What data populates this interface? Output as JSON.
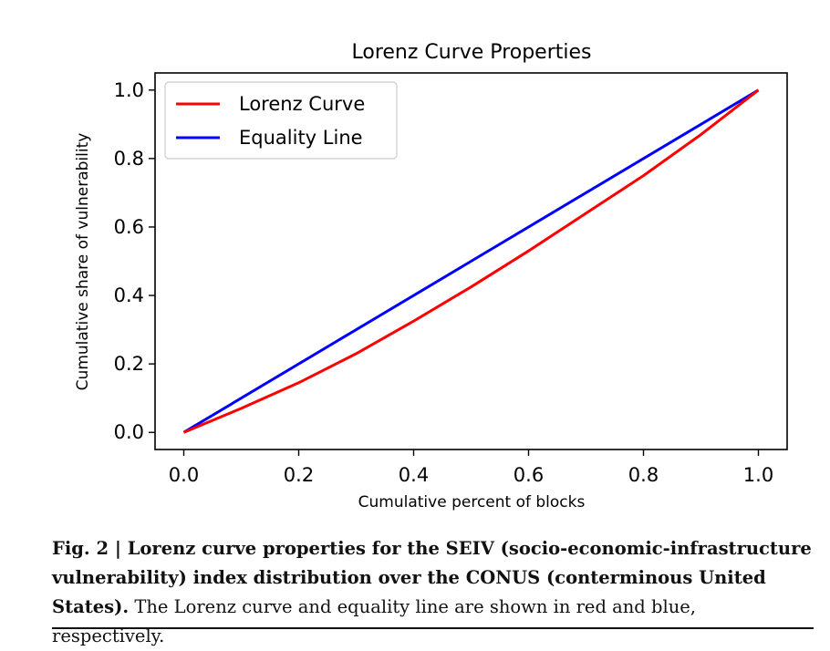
{
  "chart_data": {
    "type": "line",
    "title": "Lorenz Curve Properties",
    "xlabel": "Cumulative percent of blocks",
    "ylabel": "Cumulative share of vulnerability",
    "xlim": [
      -0.05,
      1.05
    ],
    "ylim": [
      -0.05,
      1.05
    ],
    "xticks": [
      "0.0",
      "0.2",
      "0.4",
      "0.6",
      "0.8",
      "1.0"
    ],
    "yticks": [
      "0.0",
      "0.2",
      "0.4",
      "0.6",
      "0.8",
      "1.0"
    ],
    "grid": false,
    "legend_position": "upper-left",
    "series": [
      {
        "name": "Lorenz Curve",
        "color": "#ff0000",
        "x": [
          0.0,
          0.1,
          0.2,
          0.3,
          0.4,
          0.5,
          0.6,
          0.7,
          0.8,
          0.9,
          1.0
        ],
        "y": [
          0.0,
          0.07,
          0.145,
          0.23,
          0.325,
          0.425,
          0.53,
          0.64,
          0.75,
          0.87,
          1.0
        ]
      },
      {
        "name": "Equality Line",
        "color": "#0000ff",
        "x": [
          0.0,
          1.0
        ],
        "y": [
          0.0,
          1.0
        ]
      }
    ]
  },
  "caption": {
    "label": "Fig. 2 | Lorenz curve properties for the SEIV (socio-economic-infrastructure vulnerability) index distribution over the CONUS (conterminous United States).",
    "text": " The Lorenz curve and equality line are shown in red and blue, respectively."
  }
}
